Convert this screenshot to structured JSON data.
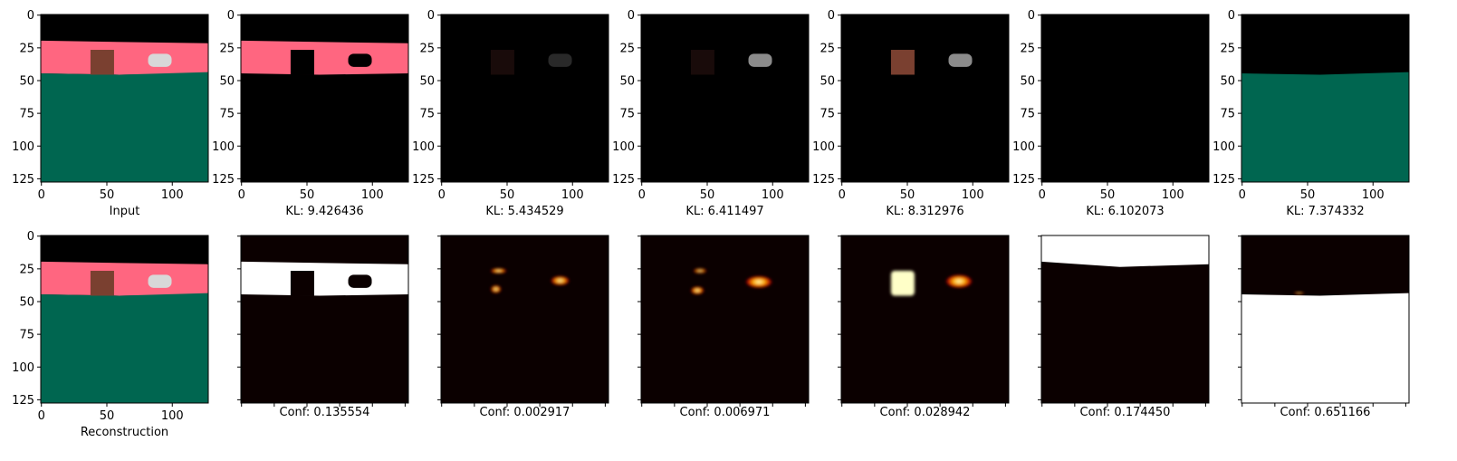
{
  "chart_data": {
    "type": "image-grid",
    "image_size": [
      128,
      128
    ],
    "x_ticks": [
      0,
      50,
      100
    ],
    "y_ticks": [
      0,
      25,
      50,
      75,
      100,
      125
    ],
    "colormap": "hot",
    "rows": [
      {
        "panels": [
          {
            "caption": "Input",
            "kind": "scene",
            "layers": [
              "sky",
              "wall",
              "floor",
              "cube",
              "car"
            ]
          },
          {
            "caption": "KL: 9.426436",
            "kind": "slot",
            "layers": [
              "wall",
              "cube-dark",
              "car-dark"
            ]
          },
          {
            "caption": "KL: 5.434529",
            "kind": "slot",
            "layers": [
              "cube-faint",
              "car-faint"
            ]
          },
          {
            "caption": "KL: 6.411497",
            "kind": "slot",
            "layers": [
              "cube-faint",
              "car-grey"
            ]
          },
          {
            "caption": "KL: 8.312976",
            "kind": "slot",
            "layers": [
              "cube",
              "car-grey"
            ]
          },
          {
            "caption": "KL: 6.102073",
            "kind": "slot",
            "layers": []
          },
          {
            "caption": "KL: 7.374332",
            "kind": "slot",
            "layers": [
              "floor"
            ]
          }
        ]
      },
      {
        "panels": [
          {
            "caption": "Reconstruction",
            "kind": "scene",
            "layers": [
              "sky",
              "wall",
              "floor",
              "cube",
              "car"
            ]
          },
          {
            "caption": "Conf: 0.135554",
            "kind": "mask",
            "mask": "wall"
          },
          {
            "caption": "Conf: 0.002917",
            "kind": "mask",
            "mask": "edges"
          },
          {
            "caption": "Conf: 0.006971",
            "kind": "mask",
            "mask": "car-edges"
          },
          {
            "caption": "Conf: 0.028942",
            "kind": "mask",
            "mask": "objects"
          },
          {
            "caption": "Conf: 0.174450",
            "kind": "mask",
            "mask": "sky"
          },
          {
            "caption": "Conf: 0.651166",
            "kind": "mask",
            "mask": "floor"
          }
        ]
      }
    ]
  },
  "colors": {
    "sky": "#000000",
    "wall": "#ff6680",
    "floor": "#006650",
    "cube": "#7a4030",
    "car": "#d8d8d8",
    "mask_bg": "#0b0000",
    "mask_hot": "#ffffff"
  }
}
